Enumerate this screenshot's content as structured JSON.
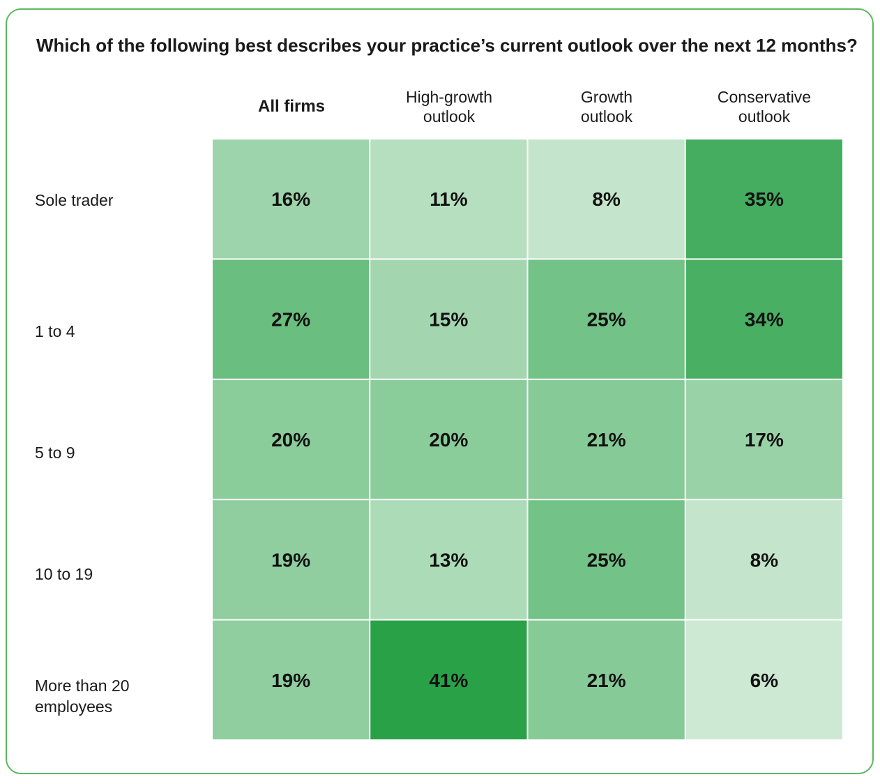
{
  "chart_data": {
    "type": "heatmap",
    "title": "Which of the following best describes your practice’s current outlook over the next 12 months?",
    "columns": [
      "All firms",
      "High-growth\noutlook",
      "Growth\noutlook",
      "Conservative\noutlook"
    ],
    "rows": [
      "Sole trader",
      "1 to 4",
      "5 to 9",
      "10 to 19",
      "More than 20\nemployees"
    ],
    "values": [
      [
        16,
        11,
        8,
        35
      ],
      [
        27,
        15,
        25,
        34
      ],
      [
        20,
        20,
        21,
        17
      ],
      [
        19,
        13,
        25,
        8
      ],
      [
        19,
        41,
        21,
        6
      ]
    ],
    "value_suffix": "%",
    "color_min": "#cde9d3",
    "color_max": "#28a147"
  }
}
